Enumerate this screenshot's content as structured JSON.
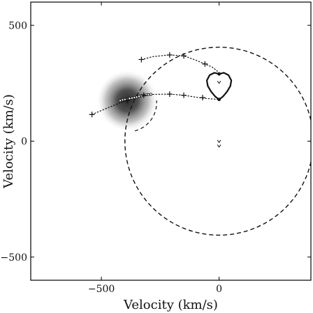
{
  "chart_data": {
    "type": "scatter",
    "xlabel": "Velocity (km/s)",
    "ylabel": "Velocity (km/s)",
    "xlim": [
      -800,
      390
    ],
    "ylim": [
      -600,
      600
    ],
    "xticks": [
      -500,
      0
    ],
    "yticks": [
      -500,
      0,
      500
    ],
    "xtick_labels": [
      "−500",
      "0"
    ],
    "ytick_labels": [
      "−500",
      "0",
      "500"
    ],
    "grid": false,
    "legend": "none",
    "colors": {
      "ink": "#111111",
      "frame": "#000000",
      "background": "#ffffff",
      "blob_core": "#2a2a2a",
      "blob_edge": "#f2f2f2"
    },
    "intensity_blob": {
      "center": [
        -390,
        175
      ],
      "radius": 130
    },
    "circle": {
      "center": [
        0,
        0
      ],
      "radius": 400,
      "style": "dashed"
    },
    "small_circle_arc": {
      "center": [
        -390,
        165
      ],
      "radius": 125,
      "style": "dashed",
      "arc_degrees": [
        -75,
        5
      ]
    },
    "upper_trajectory": {
      "style": "dotted",
      "points": [
        [
          -540,
          115
        ],
        [
          -470,
          145
        ],
        [
          -420,
          165
        ],
        [
          -380,
          180
        ],
        [
          -350,
          190
        ],
        [
          -320,
          200
        ],
        [
          -270,
          202
        ],
        [
          -210,
          203
        ],
        [
          -150,
          198
        ],
        [
          -100,
          190
        ],
        [
          -55,
          184
        ],
        [
          0,
          180
        ]
      ]
    },
    "lower_trajectory": {
      "style": "dotted",
      "points": [
        [
          -330,
          352
        ],
        [
          -280,
          365
        ],
        [
          -210,
          372
        ],
        [
          -150,
          368
        ],
        [
          -100,
          350
        ],
        [
          -60,
          333
        ],
        [
          -30,
          320
        ],
        [
          -10,
          305
        ],
        [
          0,
          290
        ]
      ]
    },
    "dense_chain": {
      "points": [
        [
          -420,
          175
        ],
        [
          -410,
          178
        ],
        [
          -400,
          180
        ],
        [
          -390,
          182
        ],
        [
          -380,
          184
        ],
        [
          -370,
          186
        ],
        [
          -360,
          188
        ],
        [
          -350,
          190
        ],
        [
          -340,
          193
        ],
        [
          -330,
          196
        ],
        [
          -320,
          198
        ],
        [
          -310,
          200
        ],
        [
          -300,
          201
        ],
        [
          -290,
          202
        ]
      ]
    },
    "plus_markers": [
      [
        -540,
        115
      ],
      [
        -390,
        175
      ],
      [
        -330,
        352
      ],
      [
        -210,
        372
      ],
      [
        -150,
        368
      ],
      [
        -60,
        333
      ],
      [
        -320,
        198
      ],
      [
        -210,
        203
      ],
      [
        -150,
        198
      ],
      [
        -70,
        188
      ]
    ],
    "loop": {
      "style": "solid",
      "points": [
        [
          0,
          290
        ],
        [
          -20,
          295
        ],
        [
          -40,
          285
        ],
        [
          -52,
          262
        ],
        [
          -48,
          238
        ],
        [
          -34,
          214
        ],
        [
          -16,
          192
        ],
        [
          0,
          180
        ],
        [
          16,
          192
        ],
        [
          34,
          214
        ],
        [
          48,
          238
        ],
        [
          52,
          262
        ],
        [
          40,
          285
        ],
        [
          20,
          295
        ],
        [
          0,
          290
        ]
      ]
    },
    "filled_points": [
      [
        0,
        290
      ],
      [
        0,
        180
      ]
    ],
    "v_markers": [
      [
        0,
        255
      ],
      [
        0,
        0
      ],
      [
        0,
        -20
      ]
    ],
    "edge_tick": [
      390,
      0
    ]
  }
}
